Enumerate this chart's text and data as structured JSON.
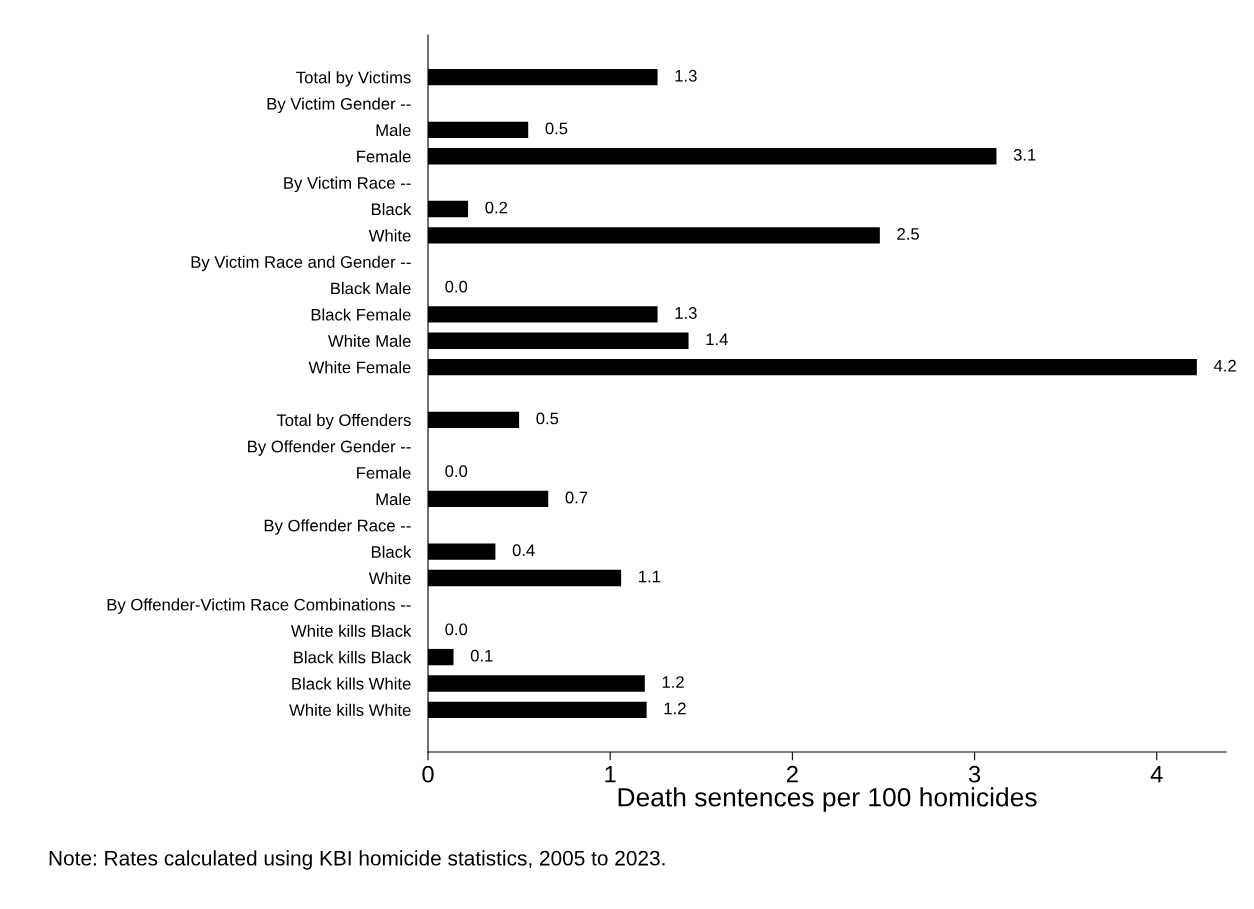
{
  "chart_data": {
    "type": "bar",
    "orientation": "horizontal",
    "xlabel": "Death sentences per 100 homicides",
    "categories": [
      "Total by Victims",
      "By Victim Gender --",
      "Male",
      "Female",
      "By Victim Race --",
      "Black",
      "White",
      "By Victim Race and Gender --",
      "Black Male",
      "Black Female",
      "White Male",
      "White Female",
      null,
      "Total by Offenders",
      "By Offender Gender --",
      "Female",
      "Male",
      "By Offender Race --",
      "Black",
      "White",
      "By Offender-Victim Race Combinations --",
      "White kills Black",
      "Black kills Black",
      "Black kills White",
      "White kills White"
    ],
    "values": [
      1.26,
      null,
      0.55,
      3.12,
      null,
      0.22,
      2.48,
      null,
      0.0,
      1.26,
      1.43,
      4.22,
      null,
      0.5,
      null,
      0.0,
      0.66,
      null,
      0.37,
      1.06,
      null,
      0.0,
      0.14,
      1.19,
      1.2
    ],
    "value_labels": [
      "1.3",
      null,
      "0.5",
      "3.1",
      null,
      "0.2",
      "2.5",
      null,
      "0.0",
      "1.3",
      "1.4",
      "4.2",
      null,
      "0.5",
      null,
      "0.0",
      "0.7",
      null,
      "0.4",
      "1.1",
      null,
      "0.0",
      "0.1",
      "1.2",
      "1.2"
    ],
    "color": "#000000",
    "xlim": [
      0,
      4.38
    ],
    "xticks": [
      0,
      1,
      2,
      3,
      4
    ],
    "grid": false,
    "annotations": [
      "Note: Rates calculated using KBI homicide statistics, 2005 to 2023."
    ]
  }
}
